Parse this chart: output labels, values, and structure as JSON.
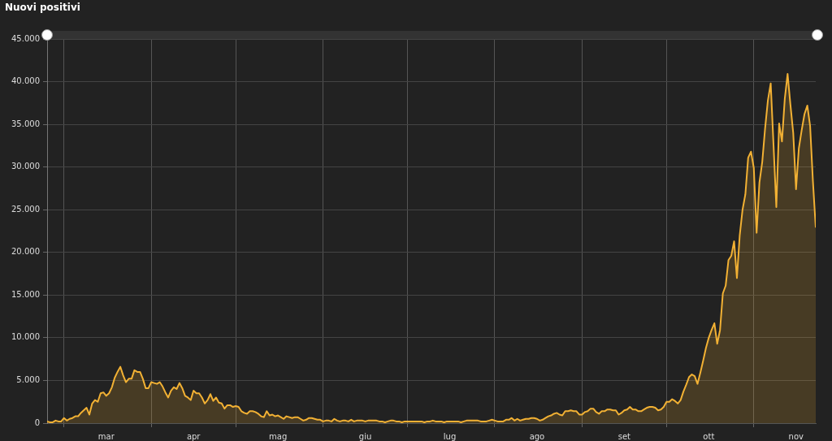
{
  "chart_data": {
    "type": "area",
    "title": "Nuovi positivi",
    "x": [
      "--02-24",
      "--02-25",
      "--02-26",
      "--02-27",
      "--02-28",
      "--02-29",
      "--03-01",
      "--03-02",
      "--03-03",
      "--03-04",
      "--03-05",
      "--03-06",
      "--03-07",
      "--03-08",
      "--03-09",
      "--03-10",
      "--03-11",
      "--03-12",
      "--03-13",
      "--03-14",
      "--03-15",
      "--03-16",
      "--03-17",
      "--03-18",
      "--03-19",
      "--03-20",
      "--03-21",
      "--03-22",
      "--03-23",
      "--03-24",
      "--03-25",
      "--03-26",
      "--03-27",
      "--03-28",
      "--03-29",
      "--03-30",
      "--03-31",
      "--04-01",
      "--04-02",
      "--04-03",
      "--04-04",
      "--04-05",
      "--04-06",
      "--04-07",
      "--04-08",
      "--04-09",
      "--04-10",
      "--04-11",
      "--04-12",
      "--04-13",
      "--04-14",
      "--04-15",
      "--04-16",
      "--04-17",
      "--04-18",
      "--04-19",
      "--04-20",
      "--04-21",
      "--04-22",
      "--04-23",
      "--04-24",
      "--04-25",
      "--04-26",
      "--04-27",
      "--04-28",
      "--04-29",
      "--04-30",
      "--05-01",
      "--05-02",
      "--05-03",
      "--05-04",
      "--05-05",
      "--05-06",
      "--05-07",
      "--05-08",
      "--05-09",
      "--05-10",
      "--05-11",
      "--05-12",
      "--05-13",
      "--05-14",
      "--05-15",
      "--05-16",
      "--05-17",
      "--05-18",
      "--05-19",
      "--05-20",
      "--05-21",
      "--05-22",
      "--05-23",
      "--05-24",
      "--05-25",
      "--05-26",
      "--05-27",
      "--05-28",
      "--05-29",
      "--05-30",
      "--05-31",
      "--06-01",
      "--06-02",
      "--06-03",
      "--06-04",
      "--06-05",
      "--06-06",
      "--06-07",
      "--06-08",
      "--06-09",
      "--06-10",
      "--06-11",
      "--06-12",
      "--06-13",
      "--06-14",
      "--06-15",
      "--06-16",
      "--06-17",
      "--06-18",
      "--06-19",
      "--06-20",
      "--06-21",
      "--06-22",
      "--06-23",
      "--06-24",
      "--06-25",
      "--06-26",
      "--06-27",
      "--06-28",
      "--06-29",
      "--06-30",
      "--07-01",
      "--07-02",
      "--07-03",
      "--07-04",
      "--07-05",
      "--07-06",
      "--07-07",
      "--07-08",
      "--07-09",
      "--07-10",
      "--07-11",
      "--07-12",
      "--07-13",
      "--07-14",
      "--07-15",
      "--07-16",
      "--07-17",
      "--07-18",
      "--07-19",
      "--07-20",
      "--07-21",
      "--07-22",
      "--07-23",
      "--07-24",
      "--07-25",
      "--07-26",
      "--07-27",
      "--07-28",
      "--07-29",
      "--07-30",
      "--07-31",
      "--08-01",
      "--08-02",
      "--08-03",
      "--08-04",
      "--08-05",
      "--08-06",
      "--08-07",
      "--08-08",
      "--08-09",
      "--08-10",
      "--08-11",
      "--08-12",
      "--08-13",
      "--08-14",
      "--08-15",
      "--08-16",
      "--08-17",
      "--08-18",
      "--08-19",
      "--08-20",
      "--08-21",
      "--08-22",
      "--08-23",
      "--08-24",
      "--08-25",
      "--08-26",
      "--08-27",
      "--08-28",
      "--08-29",
      "--08-30",
      "--08-31",
      "--09-01",
      "--09-02",
      "--09-03",
      "--09-04",
      "--09-05",
      "--09-06",
      "--09-07",
      "--09-08",
      "--09-09",
      "--09-10",
      "--09-11",
      "--09-12",
      "--09-13",
      "--09-14",
      "--09-15",
      "--09-16",
      "--09-17",
      "--09-18",
      "--09-19",
      "--09-20",
      "--09-21",
      "--09-22",
      "--09-23",
      "--09-24",
      "--09-25",
      "--09-26",
      "--09-27",
      "--09-28",
      "--09-29",
      "--09-30",
      "--10-01",
      "--10-02",
      "--10-03",
      "--10-04",
      "--10-05",
      "--10-06",
      "--10-07",
      "--10-08",
      "--10-09",
      "--10-10",
      "--10-11",
      "--10-12",
      "--10-13",
      "--10-14",
      "--10-15",
      "--10-16",
      "--10-17",
      "--10-18",
      "--10-19",
      "--10-20",
      "--10-21",
      "--10-22",
      "--10-23",
      "--10-24",
      "--10-25",
      "--10-26",
      "--10-27",
      "--10-28",
      "--10-29",
      "--10-30",
      "--10-31",
      "--11-01",
      "--11-02",
      "--11-03",
      "--11-04",
      "--11-05",
      "--11-06",
      "--11-07",
      "--11-08",
      "--11-09",
      "--11-10",
      "--11-11",
      "--11-12",
      "--11-13",
      "--11-14",
      "--11-15",
      "--11-16",
      "--11-17",
      "--11-18",
      "--11-19",
      "--11-20",
      "--11-21",
      "--11-22",
      "--11-23"
    ],
    "series": [
      {
        "color": "#f2b134",
        "values": [
          200,
          100,
          100,
          300,
          200,
          200,
          600,
          300,
          500,
          600,
          800,
          800,
          1200,
          1500,
          1800,
          1000,
          2300,
          2700,
          2500,
          3500,
          3600,
          3200,
          3500,
          4200,
          5300,
          6000,
          6600,
          5600,
          4800,
          5200,
          5200,
          6200,
          6000,
          6000,
          5200,
          4100,
          4100,
          4800,
          4700,
          4600,
          4800,
          4300,
          3600,
          3000,
          3800,
          4200,
          4000,
          4700,
          4100,
          3200,
          3000,
          2700,
          3800,
          3500,
          3500,
          3000,
          2300,
          2700,
          3400,
          2600,
          3000,
          2400,
          2300,
          1700,
          2100,
          2100,
          1900,
          2000,
          1900,
          1400,
          1200,
          1100,
          1400,
          1400,
          1300,
          1100,
          800,
          700,
          1400,
          900,
          1000,
          800,
          900,
          700,
          500,
          800,
          700,
          600,
          700,
          700,
          500,
          300,
          400,
          600,
          600,
          500,
          400,
          400,
          200,
          300,
          300,
          200,
          500,
          300,
          200,
          300,
          300,
          200,
          400,
          200,
          300,
          300,
          300,
          200,
          300,
          300,
          300,
          300,
          200,
          200,
          100,
          200,
          300,
          300,
          200,
          200,
          100,
          200,
          200,
          200,
          200,
          200,
          200,
          200,
          100,
          200,
          200,
          300,
          200,
          200,
          200,
          100,
          200,
          200,
          200,
          200,
          200,
          100,
          200,
          300,
          300,
          300,
          300,
          300,
          200,
          200,
          200,
          300,
          400,
          300,
          200,
          200,
          200,
          400,
          400,
          600,
          300,
          500,
          300,
          400,
          500,
          500,
          600,
          600,
          500,
          300,
          400,
          600,
          800,
          900,
          1100,
          1200,
          1000,
          900,
          1400,
          1400,
          1500,
          1400,
          1400,
          1000,
          1000,
          1300,
          1400,
          1700,
          1700,
          1300,
          1100,
          1400,
          1400,
          1600,
          1600,
          1500,
          1500,
          1000,
          1200,
          1500,
          1600,
          1900,
          1600,
          1600,
          1400,
          1400,
          1600,
          1800,
          1900,
          1900,
          1800,
          1500,
          1600,
          1900,
          2500,
          2500,
          2800,
          2600,
          2300,
          2700,
          3700,
          4500,
          5400,
          5700,
          5500,
          4600,
          5900,
          7300,
          8800,
          10000,
          10900,
          11700,
          9300,
          10900,
          15200,
          16100,
          19100,
          19600,
          21300,
          17000,
          22000,
          25000,
          26800,
          31100,
          31800,
          29900,
          22300,
          28200,
          30600,
          34500,
          37800,
          39800,
          32600,
          25300,
          35100,
          33000,
          38000,
          40900,
          37300,
          34000,
          27400,
          32200,
          34300,
          36200,
          37200,
          34800,
          28300,
          22900
        ]
      }
    ],
    "xlim": [
      "--02-24",
      "--11-23"
    ],
    "xticks": [
      {
        "value": "--03-01",
        "label": null
      },
      {
        "value": "--03-16",
        "label": "mar"
      },
      {
        "value": "--04-01",
        "label": null
      },
      {
        "value": "--04-16",
        "label": "apr"
      },
      {
        "value": "--05-01",
        "label": null
      },
      {
        "value": "--05-16",
        "label": "mag"
      },
      {
        "value": "--06-01",
        "label": null
      },
      {
        "value": "--06-16",
        "label": "giu"
      },
      {
        "value": "--07-01",
        "label": null
      },
      {
        "value": "--07-16",
        "label": "lug"
      },
      {
        "value": "--08-01",
        "label": null
      },
      {
        "value": "--08-16",
        "label": "ago"
      },
      {
        "value": "--09-01",
        "label": null
      },
      {
        "value": "--09-16",
        "label": "set"
      },
      {
        "value": "--10-01",
        "label": null
      },
      {
        "value": "--10-16",
        "label": "ott"
      },
      {
        "value": "--11-01",
        "label": null
      },
      {
        "value": "--11-16",
        "label": "nov"
      }
    ],
    "ylim": [
      0,
      45000
    ],
    "yticks": [
      0,
      {
        "value": 5000,
        "label": "5.000"
      },
      {
        "value": 10000,
        "label": "10.000"
      },
      {
        "value": 15000,
        "label": "15.000"
      },
      {
        "value": 20000,
        "label": "20.000"
      },
      {
        "value": 25000,
        "label": "25.000"
      },
      {
        "value": 30000,
        "label": "30.000"
      },
      {
        "value": 35000,
        "label": "35.000"
      },
      {
        "value": 40000,
        "label": "40.000"
      },
      {
        "value": 45000,
        "label": "45.000"
      }
    ],
    "grid": true,
    "legend": false,
    "marker": "none",
    "line_style": "solid"
  }
}
